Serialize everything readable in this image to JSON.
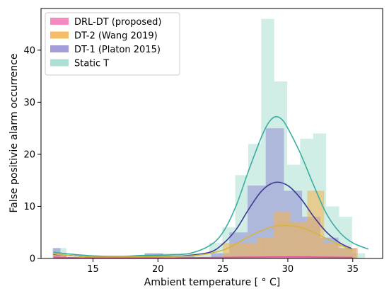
{
  "chart_data": {
    "type": "histogram",
    "xlabel": "Ambient temperature [$^\\circ$C]",
    "xlabel_display": "Ambient temperature [ ° C]",
    "ylabel": "False positivie alarm occurrence",
    "xlim": [
      11.0,
      37.3
    ],
    "ylim": [
      0,
      48
    ],
    "xticks": [
      15,
      20,
      25,
      30,
      35
    ],
    "yticks": [
      0,
      10,
      20,
      30,
      40
    ],
    "grid": false,
    "legend_position": "top-left",
    "series": [
      {
        "name": "Static T",
        "color": "#8fd3c4",
        "line_color": "#3aada0",
        "opacity": 0.42,
        "bins": [
          [
            11.95,
            12.95,
            2
          ],
          [
            12.95,
            13.95,
            0
          ],
          [
            13.95,
            14.95,
            0
          ],
          [
            14.95,
            15.95,
            0
          ],
          [
            15.95,
            16.95,
            0
          ],
          [
            16.95,
            17.95,
            0
          ],
          [
            17.95,
            18.95,
            0
          ],
          [
            18.95,
            19.95,
            1
          ],
          [
            19.95,
            20.95,
            1
          ],
          [
            20.95,
            21.95,
            1
          ],
          [
            21.95,
            22.95,
            1
          ],
          [
            22.95,
            23.95,
            1
          ],
          [
            23.95,
            24.95,
            3
          ],
          [
            24.95,
            25.95,
            6
          ],
          [
            25.95,
            26.95,
            16
          ],
          [
            26.95,
            27.95,
            22
          ],
          [
            27.95,
            28.95,
            46
          ],
          [
            28.95,
            29.95,
            34
          ],
          [
            29.95,
            30.95,
            18
          ],
          [
            30.95,
            31.95,
            23
          ],
          [
            31.95,
            32.95,
            24
          ],
          [
            32.95,
            33.95,
            10
          ],
          [
            33.95,
            34.95,
            8
          ],
          [
            34.95,
            35.95,
            1
          ]
        ],
        "kde": [
          [
            11.95,
            1.2
          ],
          [
            13,
            0.9
          ],
          [
            15,
            0.5
          ],
          [
            17,
            0.4
          ],
          [
            19,
            0.6
          ],
          [
            21,
            0.7
          ],
          [
            22.5,
            1.0
          ],
          [
            24,
            2.5
          ],
          [
            25,
            5
          ],
          [
            26,
            10
          ],
          [
            27,
            17
          ],
          [
            28,
            23.5
          ],
          [
            28.5,
            26
          ],
          [
            29,
            27.2
          ],
          [
            29.5,
            26.8
          ],
          [
            30,
            25
          ],
          [
            31,
            20
          ],
          [
            32,
            14
          ],
          [
            33,
            8.5
          ],
          [
            34,
            5
          ],
          [
            35,
            3
          ],
          [
            36.2,
            1.8
          ]
        ]
      },
      {
        "name": "DT-1 (Platon 2015)",
        "color": "#8c84cf",
        "line_color": "#3c3a96",
        "opacity": 0.5,
        "bins": [
          [
            11.9,
            12.5,
            2
          ],
          [
            19.0,
            20.4,
            1
          ],
          [
            21.4,
            22.8,
            0.5
          ],
          [
            24.1,
            25.5,
            1
          ],
          [
            25.5,
            26.9,
            5
          ],
          [
            26.9,
            28.3,
            14
          ],
          [
            28.3,
            29.7,
            25
          ],
          [
            29.7,
            31.1,
            13
          ],
          [
            31.1,
            32.5,
            8
          ],
          [
            32.5,
            33.9,
            4
          ],
          [
            33.9,
            35.3,
            2
          ]
        ],
        "kde": [
          [
            11.95,
            0.8
          ],
          [
            13,
            0.6
          ],
          [
            15,
            0.3
          ],
          [
            18,
            0.3
          ],
          [
            20,
            0.4
          ],
          [
            22,
            0.5
          ],
          [
            24,
            1.2
          ],
          [
            25,
            2.8
          ],
          [
            26,
            5.5
          ],
          [
            27,
            9.5
          ],
          [
            28,
            13
          ],
          [
            29,
            14.6
          ],
          [
            30,
            14.0
          ],
          [
            31,
            11.5
          ],
          [
            32,
            8
          ],
          [
            33,
            5
          ],
          [
            34,
            3
          ],
          [
            34.9,
            1.9
          ]
        ]
      },
      {
        "name": "DT-2 (Wang 2019)",
        "color": "#f5b04a",
        "line_color": "#d7b53a",
        "opacity": 0.55,
        "bins": [
          [
            11.95,
            12.95,
            1
          ],
          [
            20.0,
            21.0,
            0.5
          ],
          [
            25.0,
            26.3,
            3
          ],
          [
            26.3,
            27.6,
            3
          ],
          [
            27.6,
            28.9,
            4
          ],
          [
            28.9,
            30.2,
            9
          ],
          [
            30.2,
            31.5,
            7
          ],
          [
            31.5,
            32.8,
            13
          ],
          [
            32.8,
            34.1,
            3
          ],
          [
            34.1,
            35.4,
            2
          ]
        ],
        "kde": [
          [
            11.95,
            0.9
          ],
          [
            13,
            0.6
          ],
          [
            15,
            0.3
          ],
          [
            18,
            0.3
          ],
          [
            21,
            0.4
          ],
          [
            23,
            0.6
          ],
          [
            25,
            1.6
          ],
          [
            26,
            2.8
          ],
          [
            27,
            4.2
          ],
          [
            28,
            5.4
          ],
          [
            29,
            6.2
          ],
          [
            30,
            6.3
          ],
          [
            31,
            6.0
          ],
          [
            32,
            5.0
          ],
          [
            33,
            3.8
          ],
          [
            34,
            2.6
          ],
          [
            35,
            1.6
          ]
        ]
      },
      {
        "name": "DRL-DT (proposed)",
        "color": "#f48ac0",
        "line_color": "#e0509a",
        "opacity": 0.7,
        "bins": [
          [
            11.95,
            12.95,
            0.4
          ],
          [
            25.0,
            35.0,
            0.3
          ]
        ],
        "kde": [
          [
            11.95,
            0.25
          ],
          [
            15,
            0.1
          ],
          [
            20,
            0.1
          ],
          [
            25,
            0.2
          ],
          [
            30,
            0.3
          ],
          [
            35,
            0.2
          ]
        ]
      }
    ],
    "legend_order": [
      "DRL-DT (proposed)",
      "DT-2 (Wang 2019)",
      "DT-1 (Platon 2015)",
      "Static T"
    ]
  }
}
